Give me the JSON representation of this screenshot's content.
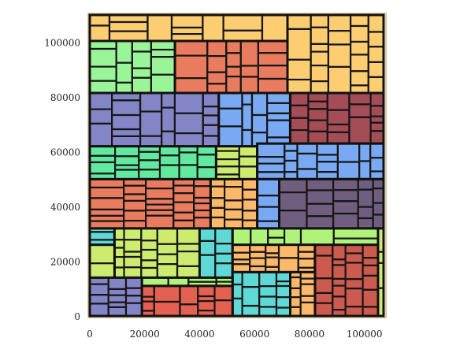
{
  "chart_data": {
    "type": "treemap",
    "x_ticks": [
      "0",
      "20000",
      "40000",
      "60000",
      "80000",
      "100000"
    ],
    "x_tick_values": [
      0,
      20000,
      40000,
      60000,
      80000,
      100000
    ],
    "y_ticks": [
      "0",
      "20000",
      "40000",
      "60000",
      "80000",
      "100000"
    ],
    "y_tick_values": [
      0,
      20000,
      40000,
      60000,
      80000,
      100000
    ],
    "xlim": [
      0,
      107000
    ],
    "ylim": [
      0,
      110000
    ],
    "grid": false,
    "legend": "none",
    "frame_color": "#d9c8a8",
    "regions": [
      {
        "name": "r01",
        "color": "#fdcd72",
        "x0": 0,
        "x1": 72000,
        "y0": 100500,
        "y1": 110000,
        "cols": 7,
        "rows": 2,
        "seed": 3
      },
      {
        "name": "r02",
        "color": "#fdcd72",
        "x0": 72000,
        "x1": 107000,
        "y0": 81500,
        "y1": 110000,
        "cols": 5,
        "rows": 5,
        "seed": 5
      },
      {
        "name": "r03",
        "color": "#9af598",
        "x0": 0,
        "x1": 31000,
        "y0": 81500,
        "y1": 100500,
        "cols": 4,
        "rows": 4,
        "seed": 7
      },
      {
        "name": "r04",
        "color": "#e97b5e",
        "x0": 31000,
        "x1": 72000,
        "y0": 81500,
        "y1": 100500,
        "cols": 5,
        "rows": 4,
        "seed": 11
      },
      {
        "name": "r05",
        "color": "#8485c6",
        "x0": 0,
        "x1": 47000,
        "y0": 62000,
        "y1": 81500,
        "cols": 6,
        "rows": 4,
        "seed": 13
      },
      {
        "name": "r06",
        "color": "#78a9f2",
        "x0": 47000,
        "x1": 73000,
        "y0": 62000,
        "y1": 81500,
        "cols": 4,
        "rows": 4,
        "seed": 17
      },
      {
        "name": "r07",
        "color": "#a44d56",
        "x0": 73000,
        "x1": 107000,
        "y0": 63000,
        "y1": 81500,
        "cols": 5,
        "rows": 4,
        "seed": 19
      },
      {
        "name": "r08",
        "color": "#62e9a0",
        "x0": 0,
        "x1": 46000,
        "y0": 50000,
        "y1": 62000,
        "cols": 6,
        "rows": 3,
        "seed": 23
      },
      {
        "name": "r09",
        "color": "#cdeb6e",
        "x0": 46000,
        "x1": 61000,
        "y0": 50000,
        "y1": 62000,
        "cols": 2,
        "rows": 4,
        "seed": 29
      },
      {
        "name": "r10",
        "color": "#e97b5e",
        "x0": 0,
        "x1": 44000,
        "y0": 32000,
        "y1": 50000,
        "cols": 5,
        "rows": 5,
        "seed": 31
      },
      {
        "name": "r11",
        "color": "#fdb86a",
        "x0": 44000,
        "x1": 61000,
        "y0": 32000,
        "y1": 50000,
        "cols": 3,
        "rows": 4,
        "seed": 37
      },
      {
        "name": "r12",
        "color": "#78a9f2",
        "x0": 61000,
        "x1": 107000,
        "y0": 50000,
        "y1": 63000,
        "cols": 7,
        "rows": 3,
        "seed": 41
      },
      {
        "name": "r13",
        "color": "#78a9f2",
        "x0": 61000,
        "x1": 69000,
        "y0": 32000,
        "y1": 50000,
        "cols": 1,
        "rows": 3,
        "seed": 43
      },
      {
        "name": "r14",
        "color": "#705e7e",
        "x0": 69000,
        "x1": 107000,
        "y0": 32000,
        "y1": 50000,
        "cols": 5,
        "rows": 4,
        "seed": 47
      },
      {
        "name": "r15",
        "color": "#5fd9d6",
        "x0": 0,
        "x1": 9000,
        "y0": 26000,
        "y1": 32000,
        "cols": 1,
        "rows": 2,
        "seed": 53
      },
      {
        "name": "r16",
        "color": "#cdeb6e",
        "x0": 9000,
        "x1": 40000,
        "y0": 14000,
        "y1": 32000,
        "cols": 5,
        "rows": 5,
        "seed": 59
      },
      {
        "name": "r17",
        "color": "#cdeb6e",
        "x0": 0,
        "x1": 9000,
        "y0": 14000,
        "y1": 26000,
        "cols": 1,
        "rows": 3,
        "seed": 61
      },
      {
        "name": "r18",
        "color": "#5fd9d6",
        "x0": 40000,
        "x1": 52000,
        "y0": 14000,
        "y1": 32000,
        "cols": 2,
        "rows": 4,
        "seed": 67
      },
      {
        "name": "r19",
        "color": "#b0f37a",
        "x0": 52000,
        "x1": 105000,
        "y0": 26000,
        "y1": 32000,
        "cols": 6,
        "rows": 1,
        "seed": 71
      },
      {
        "name": "r20",
        "color": "#fdb86a",
        "x0": 52000,
        "x1": 82000,
        "y0": 16000,
        "y1": 26000,
        "cols": 5,
        "rows": 3,
        "seed": 73
      },
      {
        "name": "r21",
        "color": "#cc5a4e",
        "x0": 82000,
        "x1": 105000,
        "y0": 0,
        "y1": 26000,
        "cols": 4,
        "rows": 6,
        "seed": 79
      },
      {
        "name": "r22",
        "color": "#5fd9d6",
        "x0": 52000,
        "x1": 73000,
        "y0": 0,
        "y1": 16000,
        "cols": 4,
        "rows": 4,
        "seed": 83
      },
      {
        "name": "r23",
        "color": "#fdb86a",
        "x0": 73000,
        "x1": 82000,
        "y0": 0,
        "y1": 16000,
        "cols": 2,
        "rows": 4,
        "seed": 89
      },
      {
        "name": "r24",
        "color": "#8485c6",
        "x0": 0,
        "x1": 19000,
        "y0": 0,
        "y1": 14000,
        "cols": 3,
        "rows": 4,
        "seed": 97
      },
      {
        "name": "r25",
        "color": "#e46050",
        "x0": 19000,
        "x1": 52000,
        "y0": 0,
        "y1": 11000,
        "cols": 5,
        "rows": 3,
        "seed": 101
      },
      {
        "name": "r26",
        "color": "#b0f37a",
        "x0": 19000,
        "x1": 52000,
        "y0": 11000,
        "y1": 14000,
        "cols": 4,
        "rows": 1,
        "seed": 103
      },
      {
        "name": "r27",
        "color": "#cdeb6e",
        "x0": 105000,
        "x1": 107000,
        "y0": 0,
        "y1": 32000,
        "cols": 1,
        "rows": 3,
        "seed": 107
      }
    ]
  }
}
